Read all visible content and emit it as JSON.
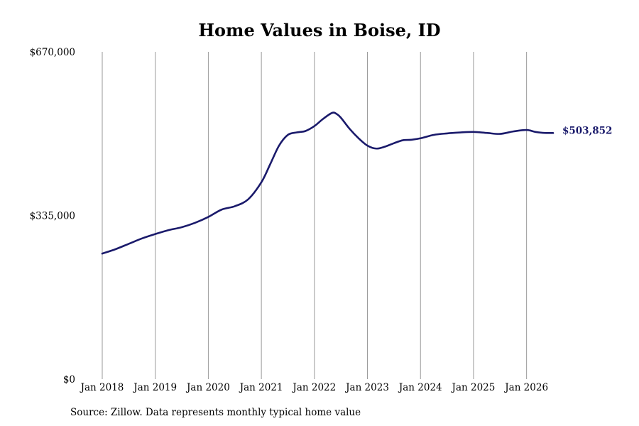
{
  "colors": {
    "line": "#1a1a6b",
    "grid": "#9a9a9a",
    "end_label": "#1a1a6b",
    "text": "#000000",
    "background": "#ffffff"
  },
  "footer": {
    "source": "Source: Zillow. Data represents monthly typical home value"
  },
  "chart_data": {
    "type": "line",
    "title": "Home Values in Boise, ID",
    "xlabel": "",
    "ylabel": "",
    "ylim": [
      0,
      670000
    ],
    "xlim": [
      "2018-01",
      "2026-07"
    ],
    "grid": "vertical",
    "yticks": [
      {
        "value": 670000,
        "label": "$670,000"
      },
      {
        "value": 335000,
        "label": "$335,000"
      },
      {
        "value": 0,
        "label": "$0"
      }
    ],
    "xticks": [
      {
        "value": "2018-01",
        "label": "Jan 2018"
      },
      {
        "value": "2019-01",
        "label": "Jan 2019"
      },
      {
        "value": "2020-01",
        "label": "Jan 2020"
      },
      {
        "value": "2021-01",
        "label": "Jan 2021"
      },
      {
        "value": "2022-01",
        "label": "Jan 2022"
      },
      {
        "value": "2023-01",
        "label": "Jan 2023"
      },
      {
        "value": "2024-01",
        "label": "Jan 2024"
      },
      {
        "value": "2025-01",
        "label": "Jan 2025"
      },
      {
        "value": "2026-01",
        "label": "Jan 2026"
      }
    ],
    "end_label": "$503,852",
    "series": [
      {
        "x": [
          "2018-01",
          "2018-04",
          "2018-07",
          "2018-10",
          "2019-01",
          "2019-04",
          "2019-07",
          "2019-10",
          "2020-01",
          "2020-04",
          "2020-07",
          "2020-10",
          "2021-01",
          "2021-03",
          "2021-05",
          "2021-07",
          "2021-09",
          "2021-11",
          "2022-01",
          "2022-03",
          "2022-05",
          "2022-06",
          "2022-07",
          "2022-09",
          "2022-11",
          "2023-01",
          "2023-03",
          "2023-05",
          "2023-07",
          "2023-09",
          "2023-11",
          "2024-01",
          "2024-04",
          "2024-07",
          "2024-10",
          "2025-01",
          "2025-04",
          "2025-07",
          "2025-10",
          "2026-01",
          "2026-03",
          "2026-05",
          "2026-07"
        ],
        "values": [
          257000,
          266000,
          277000,
          288000,
          297000,
          305000,
          311000,
          320000,
          332000,
          347000,
          354000,
          368000,
          403000,
          440000,
          478000,
          500000,
          505000,
          508000,
          518000,
          533000,
          545000,
          543000,
          535000,
          512000,
          493000,
          478000,
          472000,
          476000,
          483000,
          489000,
          490000,
          493000,
          500000,
          503000,
          505000,
          506000,
          504000,
          502000,
          507000,
          510000,
          506000,
          504000,
          503852
        ]
      }
    ]
  }
}
